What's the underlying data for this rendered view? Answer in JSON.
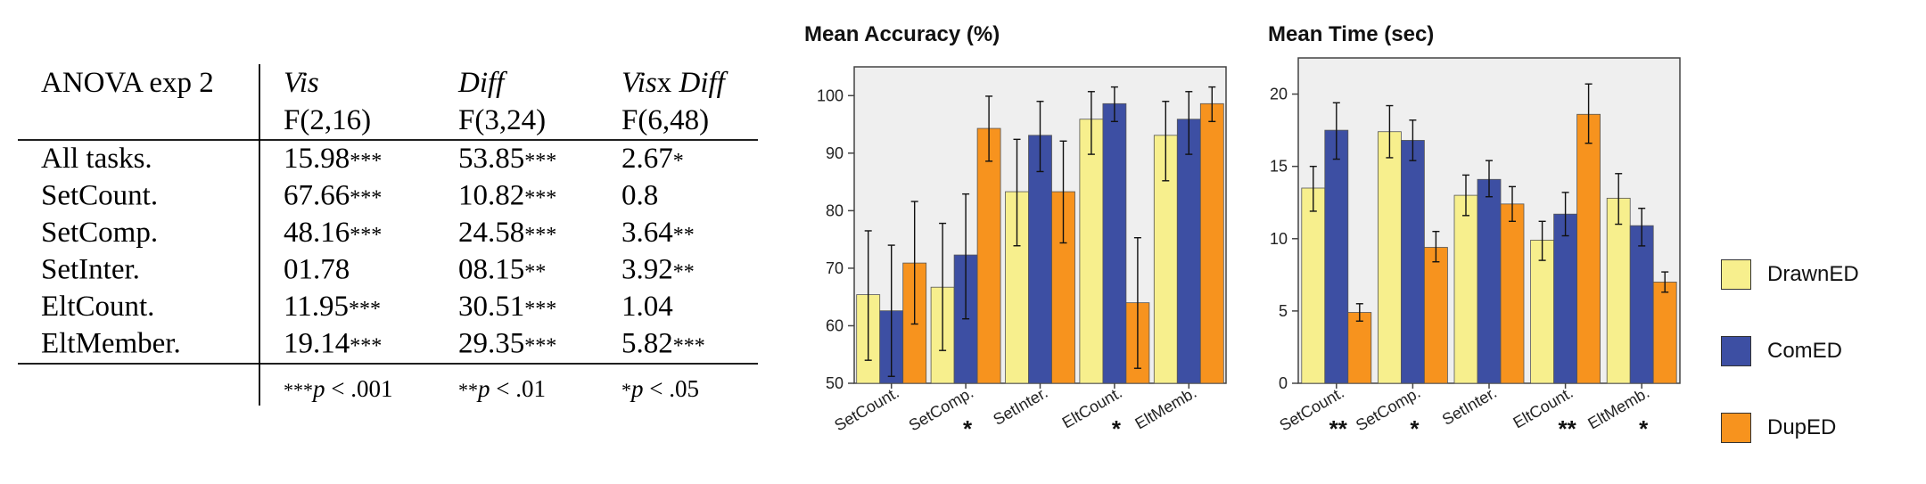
{
  "anova": {
    "title": "ANOVA exp 2",
    "columns": [
      {
        "name": "Vis",
        "df": "F(2,16)"
      },
      {
        "name": "Diff",
        "df": "F(3,24)"
      },
      {
        "name": "Vis",
        "name_suffix": "x ",
        "name2": "Diff",
        "df": "F(6,48)"
      }
    ],
    "rows": [
      {
        "label": "All tasks.",
        "cells": [
          {
            "v": "15.98",
            "s": "***"
          },
          {
            "v": "53.85",
            "s": "***"
          },
          {
            "v": "2.67",
            "s": "*"
          }
        ]
      },
      {
        "label": "SetCount.",
        "cells": [
          {
            "v": "67.66",
            "s": "***"
          },
          {
            "v": "10.82",
            "s": "***"
          },
          {
            "v": "0.8",
            "s": ""
          }
        ]
      },
      {
        "label": "SetComp.",
        "cells": [
          {
            "v": "48.16",
            "s": "***"
          },
          {
            "v": "24.58",
            "s": "***"
          },
          {
            "v": "3.64",
            "s": "**"
          }
        ]
      },
      {
        "label": "SetInter.",
        "cells": [
          {
            "v": "01.78",
            "s": ""
          },
          {
            "v": "08.15",
            "s": "**"
          },
          {
            "v": "3.92",
            "s": "**"
          }
        ]
      },
      {
        "label": "EltCount.",
        "cells": [
          {
            "v": "11.95",
            "s": "***"
          },
          {
            "v": "30.51",
            "s": "***"
          },
          {
            "v": "1.04",
            "s": ""
          }
        ]
      },
      {
        "label": "EltMember.",
        "cells": [
          {
            "v": "19.14",
            "s": "***"
          },
          {
            "v": "29.35",
            "s": "***"
          },
          {
            "v": "5.82",
            "s": "***"
          }
        ]
      }
    ],
    "footnotes": [
      {
        "stars": "***",
        "p": "p",
        "rel": " < .001"
      },
      {
        "stars": "**",
        "p": "p",
        "rel": " < .01"
      },
      {
        "stars": "*",
        "p": "p",
        "rel": " < .05"
      }
    ]
  },
  "legend": [
    {
      "name": "DrawnED",
      "color": "#f7ef8d"
    },
    {
      "name": "ComED",
      "color": "#3d4fa3"
    },
    {
      "name": "DupED",
      "color": "#f7931e"
    }
  ],
  "chart_data": [
    {
      "type": "bar",
      "title": "Mean Accuracy (%)",
      "categories": [
        "SetCount.",
        "SetComp.",
        "SetInter.",
        "EltCount.",
        "EltMemb."
      ],
      "significance": [
        "",
        "*",
        "",
        "*",
        ""
      ],
      "ylim": [
        50,
        105
      ],
      "yticks": [
        50,
        60,
        70,
        80,
        90,
        100
      ],
      "grid": false,
      "background": "#efefef",
      "series": [
        {
          "name": "DrawnED",
          "color": "#f7ef8d",
          "values": [
            65.4,
            66.7,
            83.3,
            95.9,
            93.1
          ],
          "errors": [
            [
              54.0,
              76.5
            ],
            [
              55.7,
              77.8
            ],
            [
              73.9,
              92.4
            ],
            [
              89.8,
              100.7
            ],
            [
              85.2,
              99.0
            ]
          ]
        },
        {
          "name": "ComED",
          "color": "#3d4fa3",
          "values": [
            62.6,
            72.3,
            93.1,
            98.6,
            95.9
          ],
          "errors": [
            [
              51.2,
              74.0
            ],
            [
              61.2,
              82.9
            ],
            [
              86.8,
              99.0
            ],
            [
              95.5,
              101.5
            ],
            [
              89.8,
              100.7
            ]
          ]
        },
        {
          "name": "DupED",
          "color": "#f7931e",
          "values": [
            70.9,
            94.3,
            83.3,
            64.0,
            98.6
          ],
          "errors": [
            [
              60.3,
              81.6
            ],
            [
              88.6,
              99.9
            ],
            [
              74.4,
              92.1
            ],
            [
              52.6,
              75.3
            ],
            [
              95.5,
              101.5
            ]
          ]
        }
      ]
    },
    {
      "type": "bar",
      "title": "Mean Time (sec)",
      "categories": [
        "SetCount.",
        "SetComp.",
        "SetInter.",
        "EltCount.",
        "EltMemb."
      ],
      "significance": [
        "**",
        "*",
        "",
        "**",
        "*"
      ],
      "ylim": [
        0,
        22.5
      ],
      "yticks": [
        0,
        5,
        10,
        15,
        20
      ],
      "grid": false,
      "background": "#efefef",
      "series": [
        {
          "name": "DrawnED",
          "color": "#f7ef8d",
          "values": [
            13.5,
            17.4,
            13.0,
            9.9,
            12.8
          ],
          "errors": [
            [
              11.9,
              15.0
            ],
            [
              15.6,
              19.2
            ],
            [
              11.6,
              14.4
            ],
            [
              8.5,
              11.2
            ],
            [
              11.0,
              14.5
            ]
          ]
        },
        {
          "name": "ComED",
          "color": "#3d4fa3",
          "values": [
            17.5,
            16.8,
            14.1,
            11.7,
            10.9
          ],
          "errors": [
            [
              15.5,
              19.4
            ],
            [
              15.4,
              18.2
            ],
            [
              12.9,
              15.4
            ],
            [
              10.2,
              13.2
            ],
            [
              9.5,
              12.1
            ]
          ]
        },
        {
          "name": "DupED",
          "color": "#f7931e",
          "values": [
            4.9,
            9.4,
            12.4,
            18.6,
            7.0
          ],
          "errors": [
            [
              4.3,
              5.5
            ],
            [
              8.4,
              10.5
            ],
            [
              11.2,
              13.6
            ],
            [
              16.6,
              20.7
            ],
            [
              6.3,
              7.7
            ]
          ]
        }
      ]
    }
  ]
}
